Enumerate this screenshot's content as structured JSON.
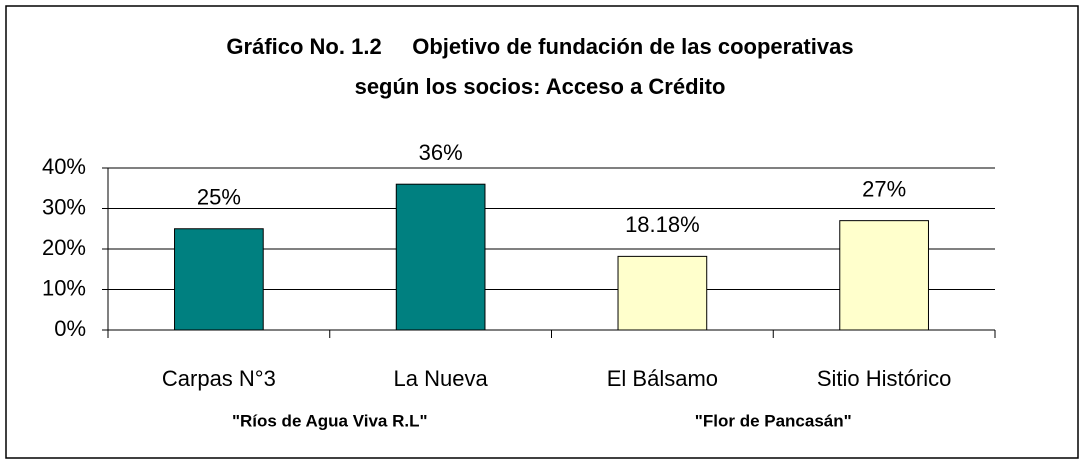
{
  "chart_data": {
    "type": "bar",
    "title": [
      "Gráfico No. 1.2     Objetivo de fundación de las cooperativas",
      "según los socios: Acceso a Crédito"
    ],
    "categories": [
      "Carpas N°3",
      "La Nueva",
      "El Bálsamo",
      "Sitio Histórico"
    ],
    "values": [
      25,
      36,
      18.18,
      27
    ],
    "value_labels": [
      "25%",
      "36%",
      "18.18%",
      "27%"
    ],
    "colors": [
      "#008080",
      "#008080",
      "#ffffcc",
      "#ffffcc"
    ],
    "group_labels": [
      "\"Ríos de Agua Viva R.L\"",
      "\"Flor de Pancasán\""
    ],
    "ylim": [
      0,
      40
    ],
    "yticks": [
      {
        "value": 0,
        "label": "0%"
      },
      {
        "value": 10,
        "label": "10%"
      },
      {
        "value": 20,
        "label": "20%"
      },
      {
        "value": 30,
        "label": "30%"
      },
      {
        "value": 40,
        "label": "40%"
      }
    ],
    "grid": true
  }
}
